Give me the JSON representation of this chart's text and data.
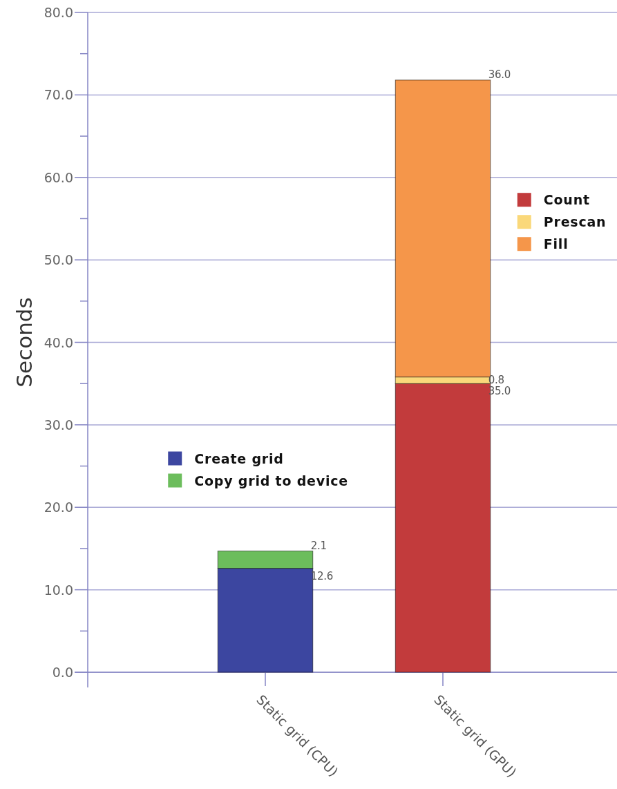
{
  "chart_data": {
    "type": "bar",
    "stacked": true,
    "ylabel": "Seconds",
    "categories": [
      "Static grid (CPU)",
      "Static grid (GPU)"
    ],
    "series": [
      {
        "name": "Create grid",
        "color": "#3c46a0",
        "values": [
          12.6,
          null
        ],
        "value_labels": [
          "12.6",
          null
        ]
      },
      {
        "name": "Copy grid to device",
        "color": "#6cbd5c",
        "values": [
          2.1,
          null
        ],
        "value_labels": [
          "2.1",
          null
        ]
      },
      {
        "name": "Count",
        "color": "#c23b3c",
        "values": [
          null,
          35.0
        ],
        "value_labels": [
          null,
          "35.0"
        ]
      },
      {
        "name": "Prescan",
        "color": "#fad87a",
        "values": [
          null,
          0.8
        ],
        "value_labels": [
          null,
          "0.8"
        ]
      },
      {
        "name": "Fill",
        "color": "#f5964a",
        "values": [
          null,
          36.0
        ],
        "value_labels": [
          null,
          "36.0"
        ]
      }
    ],
    "ylim": [
      0,
      80
    ],
    "yticks": [
      {
        "value": 0,
        "label": "0.0"
      },
      {
        "value": 5,
        "label": null
      },
      {
        "value": 10,
        "label": "10.0"
      },
      {
        "value": 15,
        "label": null
      },
      {
        "value": 20,
        "label": "20.0"
      },
      {
        "value": 25,
        "label": null
      },
      {
        "value": 30,
        "label": "30.0"
      },
      {
        "value": 35,
        "label": null
      },
      {
        "value": 40,
        "label": "40.0"
      },
      {
        "value": 45,
        "label": null
      },
      {
        "value": 50,
        "label": "50.0"
      },
      {
        "value": 55,
        "label": null
      },
      {
        "value": 60,
        "label": "60.0"
      },
      {
        "value": 65,
        "label": null
      },
      {
        "value": 70,
        "label": "70.0"
      },
      {
        "value": 75,
        "label": null
      },
      {
        "value": 80,
        "label": "80.0"
      }
    ],
    "grid": "y",
    "legend": "right"
  }
}
